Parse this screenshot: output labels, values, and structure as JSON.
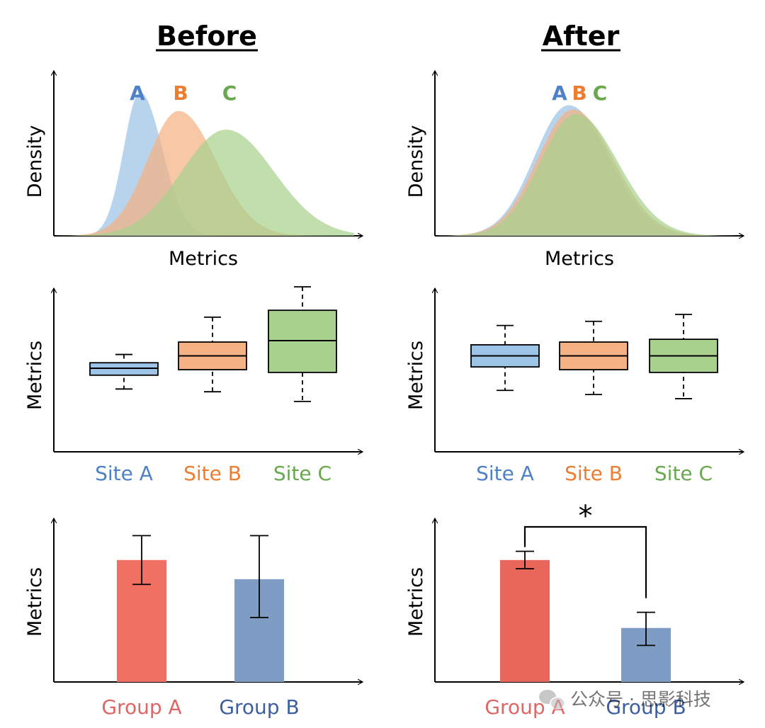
{
  "figure": {
    "before_title": "Before",
    "after_title": "After",
    "watermark": "公众号 · 思影科技"
  },
  "colors": {
    "site_a": "#4f81c7",
    "site_b": "#ed7d31",
    "site_c": "#6aa84f",
    "fill_a": "#9dc3e6",
    "fill_b": "#f4b183",
    "fill_c": "#a9d18e",
    "group_a_bar": "#f07062",
    "group_a_bar_after": "#e8675a",
    "group_b_bar": "#7f9cc4",
    "group_a_label": "#e06666",
    "group_b_label": "#3d5fa0"
  },
  "chart_data": [
    {
      "id": "density-before",
      "type": "area",
      "title": "Before",
      "xlabel": "Metrics",
      "ylabel": "Density",
      "grid": false,
      "xlim": [
        0,
        10
      ],
      "ylim": [
        0,
        1.15
      ],
      "series": [
        {
          "name": "A",
          "key": "a",
          "mean": 2.8,
          "sd_left": 0.55,
          "sd_right": 0.75,
          "peak": 1.0
        },
        {
          "name": "B",
          "key": "b",
          "mean": 4.1,
          "sd_left": 1.05,
          "sd_right": 1.25,
          "peak": 0.87
        },
        {
          "name": "C",
          "key": "c",
          "mean": 5.7,
          "sd_left": 1.5,
          "sd_right": 1.6,
          "peak": 0.74
        }
      ],
      "legend_labels": [
        "A",
        "B",
        "C"
      ]
    },
    {
      "id": "density-after",
      "type": "area",
      "title": "After",
      "xlabel": "Metrics",
      "ylabel": "Density",
      "grid": false,
      "xlim": [
        0,
        10
      ],
      "ylim": [
        0,
        1.15
      ],
      "series": [
        {
          "name": "A",
          "key": "a",
          "mean": 4.4,
          "sd_left": 1.15,
          "sd_right": 1.35,
          "peak": 0.91
        },
        {
          "name": "B",
          "key": "b",
          "mean": 4.55,
          "sd_left": 1.2,
          "sd_right": 1.35,
          "peak": 0.88
        },
        {
          "name": "C",
          "key": "c",
          "mean": 4.65,
          "sd_left": 1.2,
          "sd_right": 1.4,
          "peak": 0.85
        }
      ],
      "legend_labels": [
        "A",
        "B",
        "C"
      ]
    },
    {
      "id": "box-before",
      "type": "box",
      "ylabel": "Metrics",
      "grid": false,
      "ylim": [
        0,
        10
      ],
      "categories": [
        "Site A",
        "Site B",
        "Site C"
      ],
      "boxes": [
        {
          "key": "a",
          "whisker_low": 2.6,
          "q1": 3.6,
          "median": 4.1,
          "q3": 4.5,
          "whisker_high": 5.1
        },
        {
          "key": "b",
          "whisker_low": 2.4,
          "q1": 4.0,
          "median": 5.0,
          "q3": 6.0,
          "whisker_high": 7.8
        },
        {
          "key": "c",
          "whisker_low": 1.7,
          "q1": 3.8,
          "median": 6.1,
          "q3": 8.3,
          "whisker_high": 10.0
        }
      ]
    },
    {
      "id": "box-after",
      "type": "box",
      "ylabel": "Metrics",
      "grid": false,
      "ylim": [
        0,
        10
      ],
      "categories": [
        "Site A",
        "Site B",
        "Site C"
      ],
      "boxes": [
        {
          "key": "a",
          "whisker_low": 2.5,
          "q1": 4.2,
          "median": 5.0,
          "q3": 5.8,
          "whisker_high": 7.2
        },
        {
          "key": "b",
          "whisker_low": 2.2,
          "q1": 4.0,
          "median": 5.0,
          "q3": 6.0,
          "whisker_high": 7.5
        },
        {
          "key": "c",
          "whisker_low": 1.9,
          "q1": 3.8,
          "median": 5.0,
          "q3": 6.2,
          "whisker_high": 8.0
        }
      ]
    },
    {
      "id": "bar-before",
      "type": "bar",
      "ylabel": "Metrics",
      "grid": false,
      "ylim": [
        0,
        10
      ],
      "categories": [
        "Group A",
        "Group B"
      ],
      "values": [
        7.0,
        5.9
      ],
      "err_low": [
        5.6,
        3.7
      ],
      "err_high": [
        8.4,
        8.4
      ],
      "significance": ""
    },
    {
      "id": "bar-after",
      "type": "bar",
      "ylabel": "Metrics",
      "grid": false,
      "ylim": [
        0,
        10
      ],
      "categories": [
        "Group A",
        "Group B"
      ],
      "values": [
        7.0,
        3.1
      ],
      "err_low": [
        6.5,
        2.1
      ],
      "err_high": [
        7.5,
        4.0
      ],
      "significance": "*"
    }
  ]
}
